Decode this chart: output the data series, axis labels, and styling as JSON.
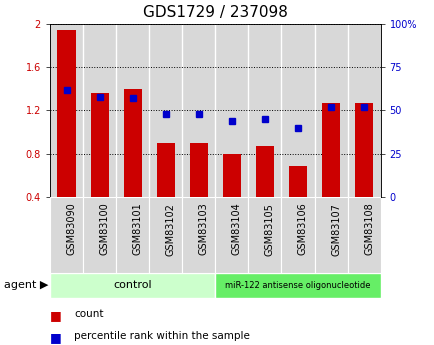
{
  "title": "GDS1729 / 237098",
  "samples": [
    "GSM83090",
    "GSM83100",
    "GSM83101",
    "GSM83102",
    "GSM83103",
    "GSM83104",
    "GSM83105",
    "GSM83106",
    "GSM83107",
    "GSM83108"
  ],
  "red_values": [
    1.95,
    1.36,
    1.4,
    0.9,
    0.9,
    0.8,
    0.87,
    0.68,
    1.27,
    1.27
  ],
  "blue_values": [
    62,
    58,
    57,
    48,
    48,
    44,
    45,
    40,
    52,
    52
  ],
  "ylim_left": [
    0.4,
    2.0
  ],
  "ylim_right": [
    0,
    100
  ],
  "yticks_left": [
    0.4,
    0.8,
    1.2,
    1.6,
    2.0
  ],
  "ytick_labels_left": [
    "0.4",
    "0.8",
    "1.2",
    "1.6",
    "2"
  ],
  "yticks_right": [
    0,
    25,
    50,
    75,
    100
  ],
  "ytick_labels_right": [
    "0",
    "25",
    "50",
    "75",
    "100%"
  ],
  "red_color": "#cc0000",
  "blue_color": "#0000cc",
  "bar_width": 0.55,
  "control_label": "control",
  "treatment_label": "miR-122 antisense oligonucleotide",
  "agent_label": "agent",
  "legend_count": "count",
  "legend_percentile": "percentile rank within the sample",
  "control_color": "#ccffcc",
  "treatment_color": "#66ee66",
  "tick_label_color_left": "#cc0000",
  "tick_label_color_right": "#0000cc",
  "plot_bg_color": "#e8e8e8",
  "col_bg_color": "#d8d8d8",
  "title_fontsize": 11,
  "tick_fontsize": 7,
  "label_fontsize": 8
}
